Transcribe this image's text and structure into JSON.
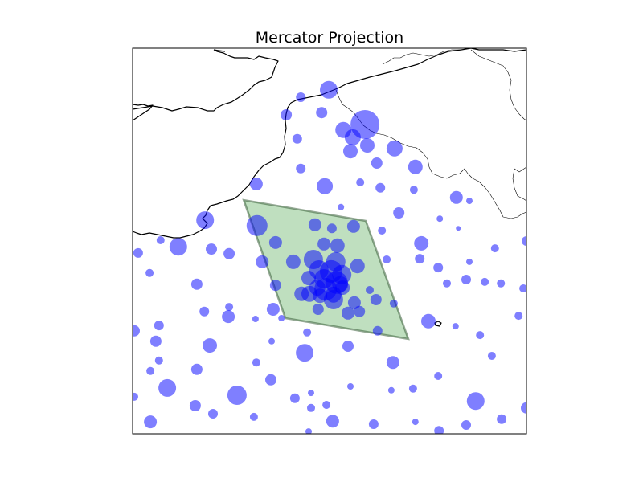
{
  "title": "Mercator Projection",
  "colors": {
    "marker_fill": "#0000ff",
    "region_fill": "#008000",
    "region_stroke": "#285028",
    "coastline": "#000000",
    "background": "#ffffff"
  },
  "chart_data": {
    "type": "scatter",
    "projection": "Mercator",
    "title": "Mercator Projection",
    "xlim": [
      0,
      100
    ],
    "ylim": [
      0,
      100
    ],
    "grid": false,
    "marker_style": "semi-transparent blue circles sized by value",
    "highlight_region": {
      "shape": "parallelogram",
      "fill": "green",
      "vertices": [
        [
          28.2,
          60.6
        ],
        [
          59.2,
          55.2
        ],
        [
          70.0,
          24.6
        ],
        [
          38.8,
          30.0
        ]
      ]
    },
    "points": [
      {
        "x": 49.8,
        "y": 89.2,
        "s": 11
      },
      {
        "x": 42.7,
        "y": 87.3,
        "s": 6
      },
      {
        "x": 48.0,
        "y": 83.3,
        "s": 7
      },
      {
        "x": 39.0,
        "y": 82.7,
        "s": 7
      },
      {
        "x": 59.0,
        "y": 80.2,
        "s": 18
      },
      {
        "x": 53.5,
        "y": 78.8,
        "s": 10
      },
      {
        "x": 55.9,
        "y": 76.9,
        "s": 10
      },
      {
        "x": 41.8,
        "y": 76.5,
        "s": 6
      },
      {
        "x": 59.6,
        "y": 74.8,
        "s": 9
      },
      {
        "x": 66.5,
        "y": 74.0,
        "s": 10
      },
      {
        "x": 55.3,
        "y": 73.3,
        "s": 9
      },
      {
        "x": 62.0,
        "y": 70.2,
        "s": 7
      },
      {
        "x": 71.8,
        "y": 69.2,
        "s": 9
      },
      {
        "x": 42.7,
        "y": 68.8,
        "s": 6
      },
      {
        "x": 31.4,
        "y": 64.8,
        "s": 8
      },
      {
        "x": 48.8,
        "y": 64.2,
        "s": 10
      },
      {
        "x": 57.8,
        "y": 65.2,
        "s": 5
      },
      {
        "x": 62.9,
        "y": 63.8,
        "s": 6
      },
      {
        "x": 71.4,
        "y": 63.3,
        "s": 5
      },
      {
        "x": 82.2,
        "y": 61.3,
        "s": 8
      },
      {
        "x": 85.5,
        "y": 60.4,
        "s": 4
      },
      {
        "x": 52.9,
        "y": 58.8,
        "s": 4
      },
      {
        "x": 67.6,
        "y": 57.3,
        "s": 7
      },
      {
        "x": 78.0,
        "y": 55.8,
        "s": 4
      },
      {
        "x": 18.4,
        "y": 55.4,
        "s": 11
      },
      {
        "x": 31.6,
        "y": 54.0,
        "s": 13
      },
      {
        "x": 46.3,
        "y": 54.2,
        "s": 8
      },
      {
        "x": 56.1,
        "y": 53.8,
        "s": 8
      },
      {
        "x": 50.6,
        "y": 53.3,
        "s": 6
      },
      {
        "x": 63.3,
        "y": 52.7,
        "s": 5
      },
      {
        "x": 82.7,
        "y": 53.3,
        "s": 3
      },
      {
        "x": 7.1,
        "y": 50.2,
        "s": 5
      },
      {
        "x": 36.3,
        "y": 49.6,
        "s": 8
      },
      {
        "x": 48.6,
        "y": 49.2,
        "s": 8
      },
      {
        "x": 52.0,
        "y": 48.8,
        "s": 9
      },
      {
        "x": 73.3,
        "y": 49.4,
        "s": 9
      },
      {
        "x": 11.6,
        "y": 48.5,
        "s": 11
      },
      {
        "x": 20.0,
        "y": 47.9,
        "s": 7
      },
      {
        "x": 24.5,
        "y": 46.7,
        "s": 7
      },
      {
        "x": 92.0,
        "y": 48.1,
        "s": 5
      },
      {
        "x": 100.0,
        "y": 50.0,
        "s": 6
      },
      {
        "x": 1.4,
        "y": 46.9,
        "s": 6
      },
      {
        "x": 32.9,
        "y": 44.6,
        "s": 8
      },
      {
        "x": 40.8,
        "y": 44.6,
        "s": 9
      },
      {
        "x": 45.9,
        "y": 45.2,
        "s": 12
      },
      {
        "x": 51.6,
        "y": 44.6,
        "s": 12
      },
      {
        "x": 57.1,
        "y": 43.5,
        "s": 9
      },
      {
        "x": 64.5,
        "y": 45.2,
        "s": 5
      },
      {
        "x": 72.9,
        "y": 45.4,
        "s": 6
      },
      {
        "x": 77.6,
        "y": 43.1,
        "s": 6
      },
      {
        "x": 85.5,
        "y": 44.6,
        "s": 4
      },
      {
        "x": 4.3,
        "y": 41.7,
        "s": 5
      },
      {
        "x": 47.3,
        "y": 42.5,
        "s": 12
      },
      {
        "x": 50.4,
        "y": 42.1,
        "s": 14
      },
      {
        "x": 48.6,
        "y": 40.2,
        "s": 12
      },
      {
        "x": 51.8,
        "y": 39.2,
        "s": 14
      },
      {
        "x": 49.0,
        "y": 37.5,
        "s": 14
      },
      {
        "x": 53.1,
        "y": 41.3,
        "s": 12
      },
      {
        "x": 44.7,
        "y": 40.4,
        "s": 9
      },
      {
        "x": 52.7,
        "y": 38.8,
        "s": 10
      },
      {
        "x": 46.9,
        "y": 37.9,
        "s": 10
      },
      {
        "x": 44.9,
        "y": 36.3,
        "s": 10
      },
      {
        "x": 47.6,
        "y": 35.8,
        "s": 9
      },
      {
        "x": 51.0,
        "y": 36.1,
        "s": 10
      },
      {
        "x": 53.3,
        "y": 37.9,
        "s": 9
      },
      {
        "x": 36.3,
        "y": 38.5,
        "s": 7
      },
      {
        "x": 42.9,
        "y": 36.3,
        "s": 9
      },
      {
        "x": 51.0,
        "y": 34.8,
        "s": 12
      },
      {
        "x": 16.3,
        "y": 38.8,
        "s": 7
      },
      {
        "x": 56.3,
        "y": 34.0,
        "s": 8
      },
      {
        "x": 60.2,
        "y": 37.3,
        "s": 5
      },
      {
        "x": 79.8,
        "y": 39.0,
        "s": 5
      },
      {
        "x": 84.7,
        "y": 40.0,
        "s": 6
      },
      {
        "x": 89.4,
        "y": 39.4,
        "s": 5
      },
      {
        "x": 93.5,
        "y": 39.0,
        "s": 5
      },
      {
        "x": 99.2,
        "y": 37.7,
        "s": 5
      },
      {
        "x": 24.5,
        "y": 32.9,
        "s": 5
      },
      {
        "x": 61.8,
        "y": 34.8,
        "s": 7
      },
      {
        "x": 66.3,
        "y": 33.8,
        "s": 5
      },
      {
        "x": 18.2,
        "y": 31.7,
        "s": 6
      },
      {
        "x": 24.3,
        "y": 30.4,
        "s": 8
      },
      {
        "x": 35.7,
        "y": 32.3,
        "s": 8
      },
      {
        "x": 47.1,
        "y": 32.3,
        "s": 7
      },
      {
        "x": 54.7,
        "y": 31.3,
        "s": 8
      },
      {
        "x": 57.6,
        "y": 31.7,
        "s": 7
      },
      {
        "x": 31.2,
        "y": 29.8,
        "s": 4
      },
      {
        "x": 37.8,
        "y": 30.0,
        "s": 4
      },
      {
        "x": 75.1,
        "y": 29.2,
        "s": 9
      },
      {
        "x": 6.7,
        "y": 28.1,
        "s": 6
      },
      {
        "x": 0.4,
        "y": 26.7,
        "s": 7
      },
      {
        "x": 44.3,
        "y": 26.3,
        "s": 5
      },
      {
        "x": 62.2,
        "y": 26.7,
        "s": 6
      },
      {
        "x": 82.0,
        "y": 27.9,
        "s": 4
      },
      {
        "x": 88.2,
        "y": 25.6,
        "s": 5
      },
      {
        "x": 98.0,
        "y": 30.6,
        "s": 5
      },
      {
        "x": 5.9,
        "y": 24.0,
        "s": 7
      },
      {
        "x": 19.6,
        "y": 22.9,
        "s": 9
      },
      {
        "x": 35.3,
        "y": 24.0,
        "s": 4
      },
      {
        "x": 43.7,
        "y": 21.0,
        "s": 11
      },
      {
        "x": 54.7,
        "y": 22.7,
        "s": 7
      },
      {
        "x": 6.7,
        "y": 19.0,
        "s": 5
      },
      {
        "x": 16.3,
        "y": 16.7,
        "s": 7
      },
      {
        "x": 31.4,
        "y": 18.5,
        "s": 5
      },
      {
        "x": 66.1,
        "y": 18.5,
        "s": 8
      },
      {
        "x": 91.2,
        "y": 20.2,
        "s": 5
      },
      {
        "x": 4.5,
        "y": 16.3,
        "s": 5
      },
      {
        "x": 35.1,
        "y": 14.0,
        "s": 7
      },
      {
        "x": 77.6,
        "y": 15.0,
        "s": 5
      },
      {
        "x": 8.8,
        "y": 11.9,
        "s": 11
      },
      {
        "x": 26.5,
        "y": 10.0,
        "s": 12
      },
      {
        "x": 45.3,
        "y": 10.6,
        "s": 4
      },
      {
        "x": 55.3,
        "y": 12.3,
        "s": 4
      },
      {
        "x": 65.7,
        "y": 11.3,
        "s": 4
      },
      {
        "x": 71.2,
        "y": 11.7,
        "s": 5
      },
      {
        "x": 87.1,
        "y": 8.5,
        "s": 11
      },
      {
        "x": 0.4,
        "y": 9.6,
        "s": 5
      },
      {
        "x": 15.9,
        "y": 7.3,
        "s": 7
      },
      {
        "x": 20.4,
        "y": 5.2,
        "s": 6
      },
      {
        "x": 41.2,
        "y": 9.2,
        "s": 6
      },
      {
        "x": 45.3,
        "y": 6.7,
        "s": 5
      },
      {
        "x": 49.2,
        "y": 7.5,
        "s": 5
      },
      {
        "x": 100.0,
        "y": 6.7,
        "s": 7
      },
      {
        "x": 4.5,
        "y": 3.1,
        "s": 8
      },
      {
        "x": 30.8,
        "y": 4.4,
        "s": 5
      },
      {
        "x": 50.8,
        "y": 3.3,
        "s": 8
      },
      {
        "x": 61.2,
        "y": 2.5,
        "s": 6
      },
      {
        "x": 71.8,
        "y": 3.1,
        "s": 4
      },
      {
        "x": 84.7,
        "y": 2.3,
        "s": 6
      },
      {
        "x": 93.7,
        "y": 3.8,
        "s": 6
      },
      {
        "x": 44.7,
        "y": 0.6,
        "s": 4
      },
      {
        "x": 77.8,
        "y": 0.8,
        "s": 6
      }
    ]
  }
}
